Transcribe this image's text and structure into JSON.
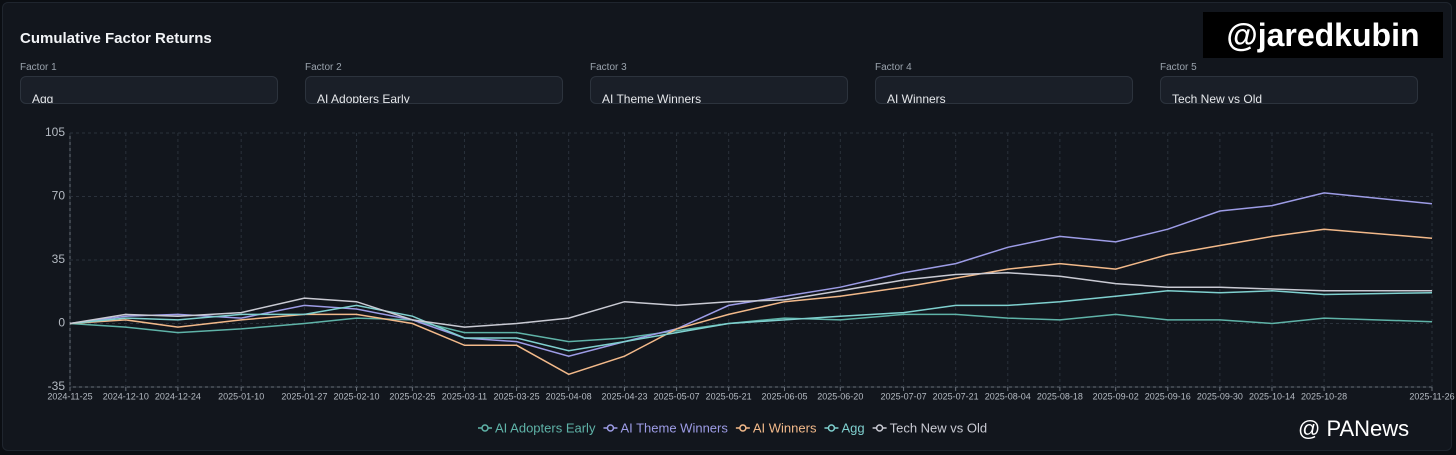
{
  "chart_data": {
    "type": "line",
    "title": "Cumulative Factor Returns",
    "watermarks": [
      "@jaredkubin",
      "@ PANews"
    ],
    "controls": [
      {
        "label": "Factor 1",
        "value": "Agg"
      },
      {
        "label": "Factor 2",
        "value": "AI Adopters Early"
      },
      {
        "label": "Factor 3",
        "value": "AI Theme Winners"
      },
      {
        "label": "Factor 4",
        "value": "AI Winners"
      },
      {
        "label": "Factor 5",
        "value": "Tech New vs Old"
      }
    ],
    "x": [
      "2024-11-25",
      "2024-12-10",
      "2024-12-24",
      "2025-01-10",
      "2025-01-27",
      "2025-02-10",
      "2025-02-25",
      "2025-03-11",
      "2025-03-25",
      "2025-04-08",
      "2025-04-23",
      "2025-05-07",
      "2025-05-21",
      "2025-06-05",
      "2025-06-20",
      "2025-07-07",
      "2025-07-21",
      "2025-08-04",
      "2025-08-18",
      "2025-09-02",
      "2025-09-16",
      "2025-09-30",
      "2025-10-14",
      "2025-10-28",
      "2025-11-26"
    ],
    "xlim": [
      "2024-11-25",
      "2025-11-26"
    ],
    "xticks": [
      "2024-11-25",
      "2024-12-10",
      "2024-12-24",
      "2025-01-10",
      "2025-01-27",
      "2025-02-10",
      "2025-02-25",
      "2025-03-11",
      "2025-03-25",
      "2025-04-08",
      "2025-04-23",
      "2025-05-07",
      "2025-05-21",
      "2025-06-05",
      "2025-06-20",
      "2025-07-07",
      "2025-07-21",
      "2025-08-04",
      "2025-08-18",
      "2025-09-02",
      "2025-09-16",
      "2025-09-30",
      "2025-10-14",
      "2025-10-28",
      "2025-11-26"
    ],
    "ylim": [
      -35,
      105
    ],
    "yticks": [
      105,
      70,
      35,
      0,
      -35
    ],
    "grid": true,
    "legend": "bottom",
    "series": [
      {
        "name": "AI Adopters Early",
        "color": "#5fb3a8",
        "values": [
          0,
          -2,
          -5,
          -3,
          0,
          3,
          2,
          -5,
          -5,
          -10,
          -8,
          -4,
          0,
          3,
          2,
          5,
          5,
          3,
          2,
          5,
          2,
          2,
          0,
          3,
          1
        ]
      },
      {
        "name": "AI Theme Winners",
        "color": "#9d9ce6",
        "values": [
          0,
          4,
          5,
          3,
          10,
          8,
          2,
          -8,
          -10,
          -18,
          -10,
          -3,
          10,
          15,
          20,
          28,
          33,
          42,
          48,
          45,
          52,
          62,
          65,
          72,
          66
        ]
      },
      {
        "name": "AI Winners",
        "color": "#f2b98a",
        "values": [
          0,
          2,
          -2,
          2,
          5,
          5,
          0,
          -12,
          -12,
          -28,
          -18,
          -3,
          5,
          12,
          15,
          20,
          25,
          30,
          33,
          30,
          38,
          43,
          48,
          52,
          47
        ]
      },
      {
        "name": "Agg",
        "color": "#7fd0cf",
        "values": [
          0,
          3,
          2,
          5,
          5,
          10,
          4,
          -8,
          -8,
          -15,
          -10,
          -5,
          0,
          2,
          4,
          6,
          10,
          10,
          12,
          15,
          18,
          17,
          18,
          16,
          17
        ]
      },
      {
        "name": "Tech New vs Old",
        "color": "#c9cad3",
        "values": [
          0,
          5,
          4,
          6,
          14,
          12,
          2,
          -2,
          0,
          3,
          12,
          10,
          12,
          13,
          18,
          24,
          27,
          28,
          26,
          22,
          20,
          20,
          19,
          18,
          18
        ]
      }
    ]
  }
}
